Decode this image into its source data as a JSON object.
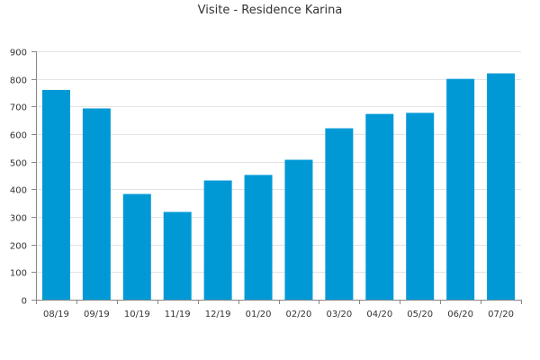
{
  "chart_data": {
    "type": "bar",
    "title": "Visite - Residence Karina",
    "xlabel": "",
    "ylabel": "",
    "categories": [
      "08/19",
      "09/19",
      "10/19",
      "11/19",
      "12/19",
      "01/20",
      "02/20",
      "03/20",
      "04/20",
      "05/20",
      "06/20",
      "07/20"
    ],
    "values": [
      760,
      693,
      383,
      318,
      432,
      452,
      507,
      621,
      673,
      677,
      800,
      820
    ],
    "ylim": [
      0,
      900
    ],
    "yticks": [
      0,
      100,
      200,
      300,
      400,
      500,
      600,
      700,
      800,
      900
    ],
    "grid": true,
    "legend": "none",
    "colors": {
      "bar": "#0099d6",
      "grid": "#e3e3e3",
      "axis": "#888888",
      "text": "#333333"
    }
  }
}
